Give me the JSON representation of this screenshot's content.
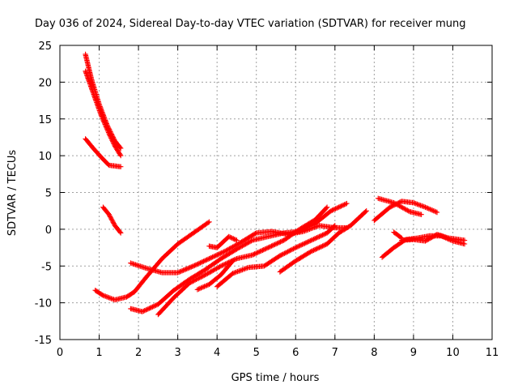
{
  "chart_data": {
    "type": "scatter",
    "title": "Day 036 of 2024, Sidereal Day-to-day VTEC variation (SDTVAR) for receiver mung",
    "xlabel": "GPS time / hours",
    "ylabel": "SDTVAR / TECUs",
    "xlim": [
      0,
      11
    ],
    "ylim": [
      -15,
      25
    ],
    "xticks": [
      "0",
      "1",
      "2",
      "3",
      "4",
      "5",
      "6",
      "7",
      "8",
      "9",
      "10",
      "11"
    ],
    "yticks": [
      "25",
      "20",
      "15",
      "10",
      "5",
      "0",
      "-5",
      "-10",
      "-15"
    ],
    "grid": true,
    "legend": "none",
    "marker": "+",
    "marker_color": "#ff0000",
    "series": [
      {
        "points": [
          [
            0.65,
            23.8
          ],
          [
            0.8,
            20.5
          ],
          [
            1.0,
            17.0
          ],
          [
            1.2,
            14.2
          ],
          [
            1.4,
            12.0
          ],
          [
            1.55,
            11.0
          ]
        ]
      },
      {
        "points": [
          [
            0.65,
            21.5
          ],
          [
            0.85,
            18.5
          ],
          [
            1.05,
            15.5
          ],
          [
            1.25,
            13.0
          ],
          [
            1.4,
            11.3
          ],
          [
            1.55,
            10.0
          ]
        ]
      },
      {
        "points": [
          [
            0.65,
            12.3
          ],
          [
            0.85,
            11.0
          ],
          [
            1.05,
            9.8
          ],
          [
            1.25,
            8.7
          ],
          [
            1.4,
            8.6
          ],
          [
            1.55,
            8.5
          ]
        ]
      },
      {
        "points": [
          [
            1.1,
            3.0
          ],
          [
            1.25,
            2.0
          ],
          [
            1.4,
            0.5
          ],
          [
            1.55,
            -0.5
          ]
        ]
      },
      {
        "points": [
          [
            0.9,
            -8.3
          ],
          [
            1.1,
            -9.0
          ],
          [
            1.4,
            -9.6
          ],
          [
            1.7,
            -9.2
          ],
          [
            1.9,
            -8.5
          ],
          [
            2.2,
            -6.5
          ],
          [
            2.6,
            -4.0
          ],
          [
            3.0,
            -2.0
          ],
          [
            3.4,
            -0.5
          ],
          [
            3.8,
            1.0
          ]
        ]
      },
      {
        "points": [
          [
            1.8,
            -4.6
          ],
          [
            2.2,
            -5.3
          ],
          [
            2.6,
            -5.9
          ],
          [
            3.0,
            -5.9
          ],
          [
            3.4,
            -5.0
          ],
          [
            3.8,
            -4.0
          ],
          [
            4.2,
            -3.0
          ],
          [
            4.6,
            -1.8
          ],
          [
            5.0,
            -0.5
          ],
          [
            5.4,
            -0.3
          ],
          [
            5.8,
            -0.7
          ],
          [
            6.2,
            -0.3
          ],
          [
            6.6,
            0.5
          ],
          [
            7.0,
            0.2
          ],
          [
            7.3,
            0.2
          ]
        ]
      },
      {
        "points": [
          [
            1.8,
            -10.8
          ],
          [
            2.1,
            -11.2
          ],
          [
            2.5,
            -10.2
          ],
          [
            2.9,
            -8.3
          ],
          [
            3.3,
            -6.8
          ],
          [
            3.7,
            -5.5
          ],
          [
            4.1,
            -4.0
          ],
          [
            4.5,
            -2.7
          ],
          [
            4.9,
            -1.5
          ],
          [
            5.3,
            -1.0
          ],
          [
            5.7,
            -0.5
          ],
          [
            6.1,
            -0.3
          ],
          [
            6.5,
            0.8
          ],
          [
            6.9,
            2.5
          ],
          [
            7.3,
            3.5
          ]
        ]
      },
      {
        "points": [
          [
            2.5,
            -11.6
          ],
          [
            2.9,
            -9.3
          ],
          [
            3.3,
            -7.3
          ],
          [
            3.7,
            -6.2
          ],
          [
            4.1,
            -5.0
          ],
          [
            4.5,
            -4.0
          ],
          [
            4.9,
            -3.5
          ],
          [
            5.3,
            -2.5
          ],
          [
            5.7,
            -1.5
          ],
          [
            6.1,
            0.0
          ],
          [
            6.5,
            1.3
          ],
          [
            6.8,
            3.0
          ]
        ]
      },
      {
        "points": [
          [
            3.5,
            -8.2
          ],
          [
            3.8,
            -7.5
          ],
          [
            4.1,
            -6.2
          ],
          [
            4.4,
            -4.3
          ]
        ]
      },
      {
        "points": [
          [
            3.8,
            -2.3
          ],
          [
            4.0,
            -2.5
          ],
          [
            4.3,
            -1.0
          ],
          [
            4.5,
            -1.5
          ]
        ]
      },
      {
        "points": [
          [
            4.0,
            -7.8
          ],
          [
            4.4,
            -6.0
          ],
          [
            4.8,
            -5.2
          ],
          [
            5.2,
            -5.0
          ],
          [
            5.6,
            -3.6
          ],
          [
            6.0,
            -2.5
          ],
          [
            6.4,
            -1.5
          ],
          [
            6.8,
            -0.5
          ],
          [
            7.0,
            0.5
          ]
        ]
      },
      {
        "points": [
          [
            5.6,
            -5.8
          ],
          [
            6.0,
            -4.3
          ],
          [
            6.4,
            -3.0
          ],
          [
            6.8,
            -2.0
          ],
          [
            7.1,
            -0.5
          ],
          [
            7.4,
            0.5
          ],
          [
            7.8,
            2.5
          ]
        ]
      },
      {
        "points": [
          [
            8.0,
            1.2
          ],
          [
            8.4,
            3.0
          ],
          [
            8.7,
            3.8
          ],
          [
            9.0,
            3.6
          ],
          [
            9.3,
            3.0
          ],
          [
            9.6,
            2.3
          ]
        ]
      },
      {
        "points": [
          [
            8.1,
            4.2
          ],
          [
            8.5,
            3.6
          ],
          [
            8.9,
            2.4
          ],
          [
            9.2,
            2.0
          ]
        ]
      },
      {
        "points": [
          [
            8.2,
            -3.8
          ],
          [
            8.5,
            -2.5
          ],
          [
            8.8,
            -1.4
          ],
          [
            9.1,
            -1.2
          ],
          [
            9.4,
            -0.9
          ],
          [
            9.7,
            -0.9
          ],
          [
            10.0,
            -1.6
          ],
          [
            10.3,
            -2.0
          ]
        ]
      },
      {
        "points": [
          [
            8.7,
            -1.5
          ],
          [
            9.0,
            -1.4
          ],
          [
            9.3,
            -1.6
          ],
          [
            9.6,
            -0.7
          ],
          [
            9.9,
            -1.2
          ],
          [
            10.3,
            -1.5
          ]
        ]
      },
      {
        "points": [
          [
            8.5,
            -0.4
          ],
          [
            8.7,
            -1.2
          ]
        ]
      }
    ]
  }
}
